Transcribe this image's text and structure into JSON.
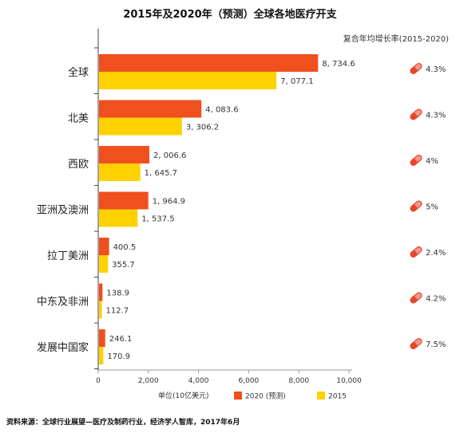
{
  "header": {
    "title": "2015年及2020年（预测）全球各地医疗开支",
    "cagr_label": "复合年均增长率(2015-2020)"
  },
  "footer": {
    "source": "资料来源：全球行业展望—医疗及制药行业，经济学人智库，2017年6月"
  },
  "chart_data": {
    "type": "bar",
    "orientation": "horizontal",
    "title": "2015年及2020年（预测）全球各地医疗开支",
    "categories": [
      "全球",
      "北美",
      "西欧",
      "亚洲及澳洲",
      "拉丁美洲",
      "中东及非洲",
      "发展中国家"
    ],
    "series": [
      {
        "name": "2020 (预测)",
        "color": "#F0501E",
        "values": [
          8734.6,
          4083.6,
          2006.6,
          1964.9,
          400.5,
          138.9,
          246.1
        ],
        "labels": [
          "8, 734.6",
          "4, 083.6",
          "2, 006.6",
          "1, 964.9",
          "400.5",
          "138.9",
          "246.1"
        ]
      },
      {
        "name": "2015",
        "color": "#FFD100",
        "values": [
          7077.1,
          3306.2,
          1645.7,
          1537.5,
          355.7,
          112.7,
          170.9
        ],
        "labels": [
          "7, 077.1",
          "3, 306.2",
          "1, 645.7",
          "1, 537.5",
          "355.7",
          "112.7",
          "170.9"
        ]
      }
    ],
    "cagr": [
      "4.3%",
      "4.3%",
      "4%",
      "5%",
      "2.4%",
      "4.2%",
      "7.5%"
    ],
    "xlim": [
      0,
      10000
    ],
    "xticks": [
      0,
      2000,
      4000,
      6000,
      8000,
      10000
    ],
    "xtick_labels": [
      "0",
      "2,000",
      "4,000",
      "6,000",
      "8,000",
      "10,000"
    ],
    "xlabel": "单位(10亿美元)",
    "legend_position": "bottom",
    "grid": false
  },
  "icon": "pill-icon",
  "icon_colors": {
    "primary": "#E8452C",
    "secondary": "#ffffff"
  }
}
